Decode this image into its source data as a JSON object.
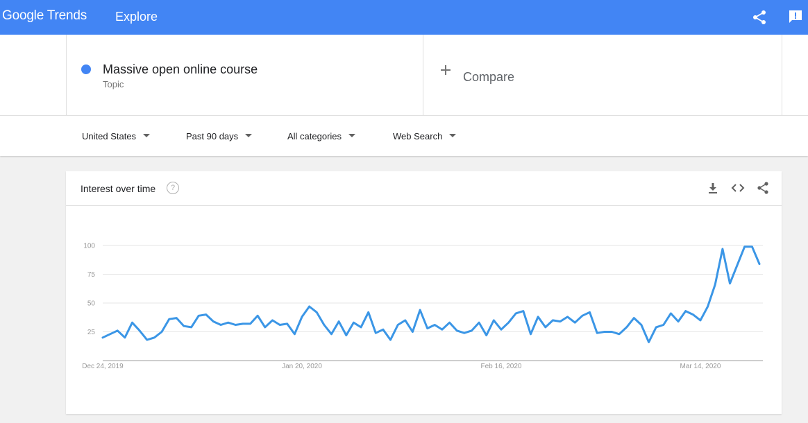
{
  "header": {
    "logo_text": "Google Trends",
    "nav_title": "Explore",
    "brand_color": "#4285f4",
    "icons": [
      "share-icon",
      "feedback-icon"
    ]
  },
  "search_term": {
    "name": "Massive open online course",
    "type": "Topic",
    "color": "#4285f4"
  },
  "compare": {
    "label": "Compare"
  },
  "filters": {
    "region": "United States",
    "time_range": "Past 90 days",
    "category": "All categories",
    "search_type": "Web Search"
  },
  "card": {
    "title": "Interest over time",
    "icons": [
      "help-icon",
      "download-icon",
      "embed-icon",
      "share-icon"
    ]
  },
  "chart_data": {
    "type": "line",
    "title": "Interest over time",
    "xlabel": "",
    "ylabel": "",
    "ylim": [
      0,
      100
    ],
    "yticks": [
      25,
      50,
      75,
      100
    ],
    "x_tick_labels": [
      {
        "label": "Dec 24, 2019",
        "index": 0
      },
      {
        "label": "Jan 20, 2020",
        "index": 27
      },
      {
        "label": "Feb 16, 2020",
        "index": 54
      },
      {
        "label": "Mar 14, 2020",
        "index": 81
      }
    ],
    "line_color": "#3b96e6",
    "grid": true,
    "series": [
      {
        "name": "Massive open online course",
        "values": [
          20,
          23,
          26,
          20,
          33,
          26,
          18,
          20,
          25,
          36,
          37,
          30,
          29,
          39,
          40,
          34,
          31,
          33,
          31,
          32,
          32,
          39,
          29,
          35,
          31,
          32,
          23,
          38,
          47,
          42,
          31,
          23,
          34,
          22,
          33,
          29,
          42,
          24,
          27,
          18,
          31,
          35,
          25,
          44,
          28,
          31,
          27,
          33,
          26,
          24,
          26,
          33,
          22,
          35,
          27,
          33,
          41,
          43,
          23,
          38,
          29,
          35,
          34,
          38,
          33,
          39,
          42,
          24,
          25,
          25,
          23,
          29,
          37,
          31,
          16,
          29,
          31,
          41,
          34,
          43,
          40,
          35,
          47,
          66,
          97,
          67,
          83,
          99,
          99,
          84
        ]
      }
    ]
  }
}
